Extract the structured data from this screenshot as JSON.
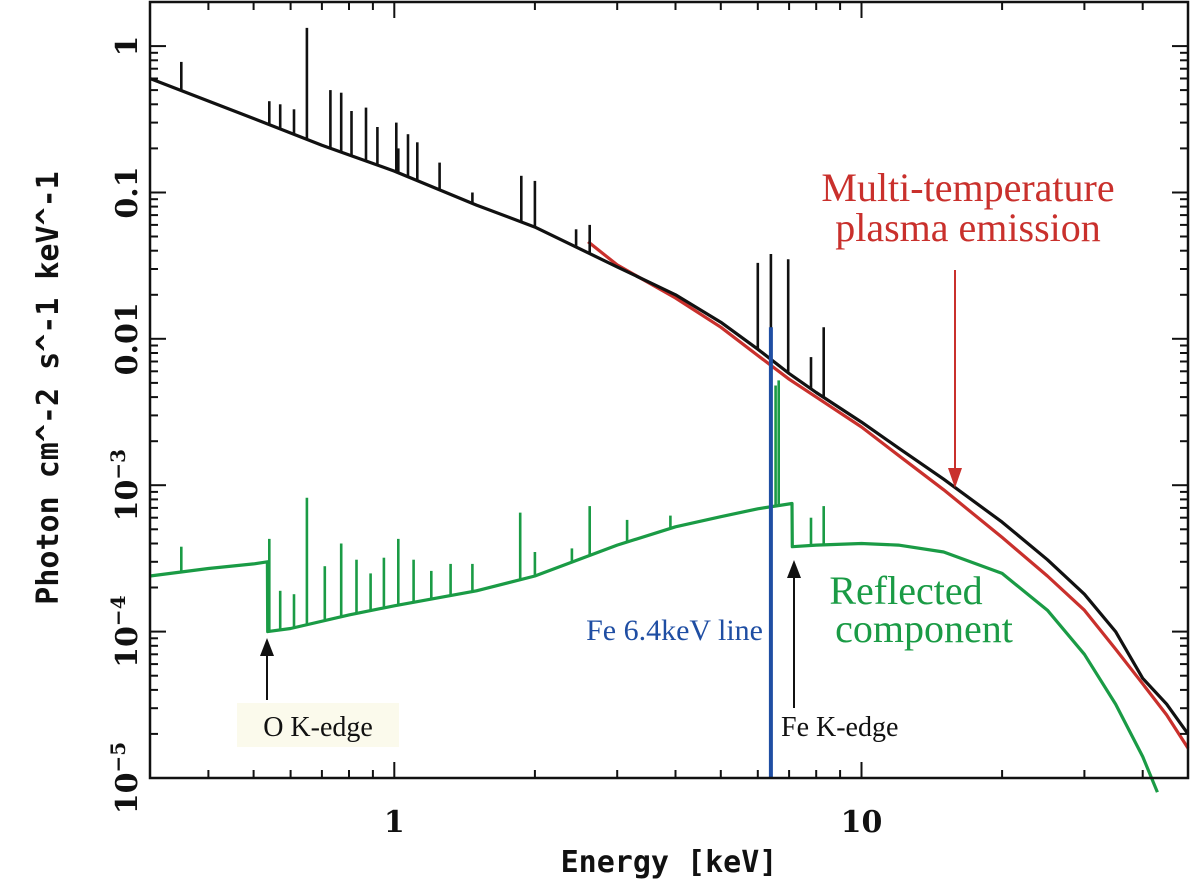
{
  "chart_data": {
    "type": "line",
    "xlabel": "Energy [keV]",
    "ylabel": "Photon cm^-2 s^-1 keV^-1",
    "xscale": "log",
    "yscale": "log",
    "xlim": [
      0.3,
      50
    ],
    "ylim": [
      1e-05,
      2
    ],
    "x_ticks": [
      {
        "value": 1,
        "label": "1"
      },
      {
        "value": 10,
        "label": "10"
      }
    ],
    "y_ticks": [
      {
        "value": 1,
        "label": "1"
      },
      {
        "value": 0.1,
        "label": "0.1"
      },
      {
        "value": 0.01,
        "label": "0.01"
      },
      {
        "value": 0.001,
        "base": "10",
        "exp": "−3"
      },
      {
        "value": 0.0001,
        "base": "10",
        "exp": "−4"
      },
      {
        "value": 1e-05,
        "base": "10",
        "exp": "−5"
      }
    ],
    "grid": false,
    "series": [
      {
        "color": "#111111",
        "x": [
          0.3,
          0.5,
          0.7,
          1,
          1.5,
          2,
          3,
          4,
          5,
          6,
          7,
          8,
          10,
          12,
          15,
          20,
          25,
          30,
          35,
          40,
          45,
          50
        ],
        "y": [
          0.6,
          0.32,
          0.21,
          0.14,
          0.082,
          0.058,
          0.031,
          0.02,
          0.013,
          0.0085,
          0.0058,
          0.0043,
          0.0027,
          0.0018,
          0.0011,
          0.00056,
          0.00031,
          0.00018,
          0.0001,
          4.8e-05,
          3.2e-05,
          2e-05
        ],
        "lines": [
          {
            "x": 0.35,
            "y": 0.78
          },
          {
            "x": 0.54,
            "y": 0.42
          },
          {
            "x": 0.57,
            "y": 0.4
          },
          {
            "x": 0.61,
            "y": 0.37
          },
          {
            "x": 0.65,
            "y": 1.33
          },
          {
            "x": 0.73,
            "y": 0.5
          },
          {
            "x": 0.77,
            "y": 0.48
          },
          {
            "x": 0.81,
            "y": 0.36
          },
          {
            "x": 0.87,
            "y": 0.38
          },
          {
            "x": 0.92,
            "y": 0.28
          },
          {
            "x": 1.01,
            "y": 0.3
          },
          {
            "x": 1.02,
            "y": 0.2
          },
          {
            "x": 1.07,
            "y": 0.25
          },
          {
            "x": 1.12,
            "y": 0.22
          },
          {
            "x": 1.25,
            "y": 0.16
          },
          {
            "x": 1.47,
            "y": 0.1
          },
          {
            "x": 1.87,
            "y": 0.13
          },
          {
            "x": 2.0,
            "y": 0.12
          },
          {
            "x": 2.45,
            "y": 0.056
          },
          {
            "x": 2.62,
            "y": 0.06
          },
          {
            "x": 6.0,
            "y": 0.033
          },
          {
            "x": 6.4,
            "y": 0.038
          },
          {
            "x": 6.97,
            "y": 0.035
          },
          {
            "x": 7.8,
            "y": 0.0075
          },
          {
            "x": 8.3,
            "y": 0.012
          }
        ]
      },
      {
        "label": "Multi-temperature plasma emission",
        "color": "#c9302c",
        "x": [
          2.6,
          3,
          4,
          5,
          6,
          7,
          8,
          10,
          12,
          15,
          20,
          25,
          30,
          35,
          40,
          45,
          50
        ],
        "y": [
          0.046,
          0.032,
          0.019,
          0.012,
          0.0077,
          0.0053,
          0.004,
          0.0025,
          0.0016,
          0.00093,
          0.00044,
          0.00024,
          0.00014,
          7.6e-05,
          4.4e-05,
          2.7e-05,
          1.6e-05
        ]
      },
      {
        "label": "Reflected component",
        "color": "#1a9b45",
        "x": [
          0.3,
          0.4,
          0.5,
          0.535,
          0.536,
          0.6,
          0.8,
          1,
          1.5,
          2,
          3,
          4,
          5,
          6,
          7.1,
          7.11,
          8,
          10,
          12,
          15,
          20,
          25,
          30,
          35,
          40,
          43
        ],
        "y": [
          0.00024,
          0.00027,
          0.00029,
          0.0003,
          0.0001,
          0.000105,
          0.00013,
          0.00015,
          0.00019,
          0.00024,
          0.00039,
          0.00052,
          0.00061,
          0.00069,
          0.00075,
          0.00038,
          0.00039,
          0.0004,
          0.00039,
          0.00035,
          0.00025,
          0.00014,
          7e-05,
          3.2e-05,
          1.4e-05,
          8e-06
        ],
        "lines": [
          {
            "x": 0.35,
            "y": 0.00038
          },
          {
            "x": 0.54,
            "y": 0.00043
          },
          {
            "x": 0.57,
            "y": 0.00019
          },
          {
            "x": 0.61,
            "y": 0.00018
          },
          {
            "x": 0.65,
            "y": 0.00082
          },
          {
            "x": 0.71,
            "y": 0.00028
          },
          {
            "x": 0.77,
            "y": 0.0004
          },
          {
            "x": 0.83,
            "y": 0.00031
          },
          {
            "x": 0.89,
            "y": 0.00025
          },
          {
            "x": 0.95,
            "y": 0.00032
          },
          {
            "x": 1.02,
            "y": 0.00043
          },
          {
            "x": 1.1,
            "y": 0.00031
          },
          {
            "x": 1.2,
            "y": 0.00026
          },
          {
            "x": 1.32,
            "y": 0.00029
          },
          {
            "x": 1.47,
            "y": 0.00029
          },
          {
            "x": 1.86,
            "y": 0.00065
          },
          {
            "x": 2.0,
            "y": 0.00035
          },
          {
            "x": 2.4,
            "y": 0.00037
          },
          {
            "x": 2.62,
            "y": 0.00072
          },
          {
            "x": 3.15,
            "y": 0.00058
          },
          {
            "x": 3.9,
            "y": 0.00062
          },
          {
            "x": 6.55,
            "y": 0.0048
          },
          {
            "x": 6.65,
            "y": 0.0052
          },
          {
            "x": 7.8,
            "y": 0.0006
          },
          {
            "x": 8.3,
            "y": 0.00072
          }
        ]
      },
      {
        "label": "Fe 6.4keV line",
        "color": "#1f4ea3",
        "x": [
          6.4,
          6.4
        ],
        "y": [
          1e-05,
          0.012
        ]
      }
    ],
    "annotations": [
      {
        "text": "O K-edge",
        "x": 0.54
      },
      {
        "text": "Fe K-edge",
        "x": 7.11
      }
    ]
  }
}
